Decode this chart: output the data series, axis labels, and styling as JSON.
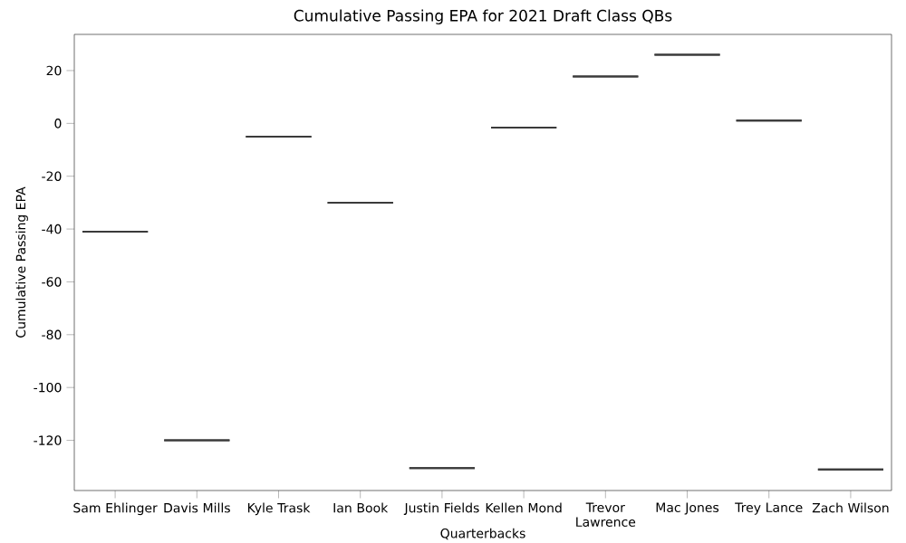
{
  "chart_data": {
    "type": "box",
    "title": "Cumulative Passing EPA for 2021 Draft Class QBs",
    "xlabel": "Quarterbacks",
    "ylabel": "Cumulative Passing EPA",
    "categories": [
      "Sam Ehlinger",
      "Davis Mills",
      "Kyle Trask",
      "Ian Book",
      "Justin Fields",
      "Kellen Mond",
      "Trevor Lawrence",
      "Mac Jones",
      "Trey Lance",
      "Zach Wilson"
    ],
    "color": "#3a3a3a",
    "boxes": [
      {
        "low": -41,
        "q1": -41,
        "median": -41,
        "q3": -41,
        "high": -41
      },
      {
        "low": -120,
        "q1": -120,
        "median": -120,
        "q3": -120,
        "high": -120
      },
      {
        "low": -5,
        "q1": -5,
        "median": -5,
        "q3": -5,
        "high": -5
      },
      {
        "low": -30,
        "q1": -30,
        "median": -30,
        "q3": -30,
        "high": -30
      },
      {
        "low": -130.5,
        "q1": -130.5,
        "median": -130.5,
        "q3": -130.5,
        "high": -130.5
      },
      {
        "low": -1.6,
        "q1": -1.6,
        "median": -1.6,
        "q3": -1.6,
        "high": -1.6
      },
      {
        "low": 17.8,
        "q1": 17.8,
        "median": 17.8,
        "q3": 17.8,
        "high": 17.8
      },
      {
        "low": 26,
        "q1": 26,
        "median": 26,
        "q3": 26,
        "high": 26
      },
      {
        "low": 1.1,
        "q1": 1.1,
        "median": 1.1,
        "q3": 1.1,
        "high": 1.1
      },
      {
        "low": -131,
        "q1": -131,
        "median": -131,
        "q3": -131,
        "high": -131
      }
    ],
    "ylim": [
      -139,
      33.7
    ],
    "yticks": [
      -120,
      -100,
      -80,
      -60,
      -40,
      -20,
      0,
      20
    ],
    "grid": false
  }
}
